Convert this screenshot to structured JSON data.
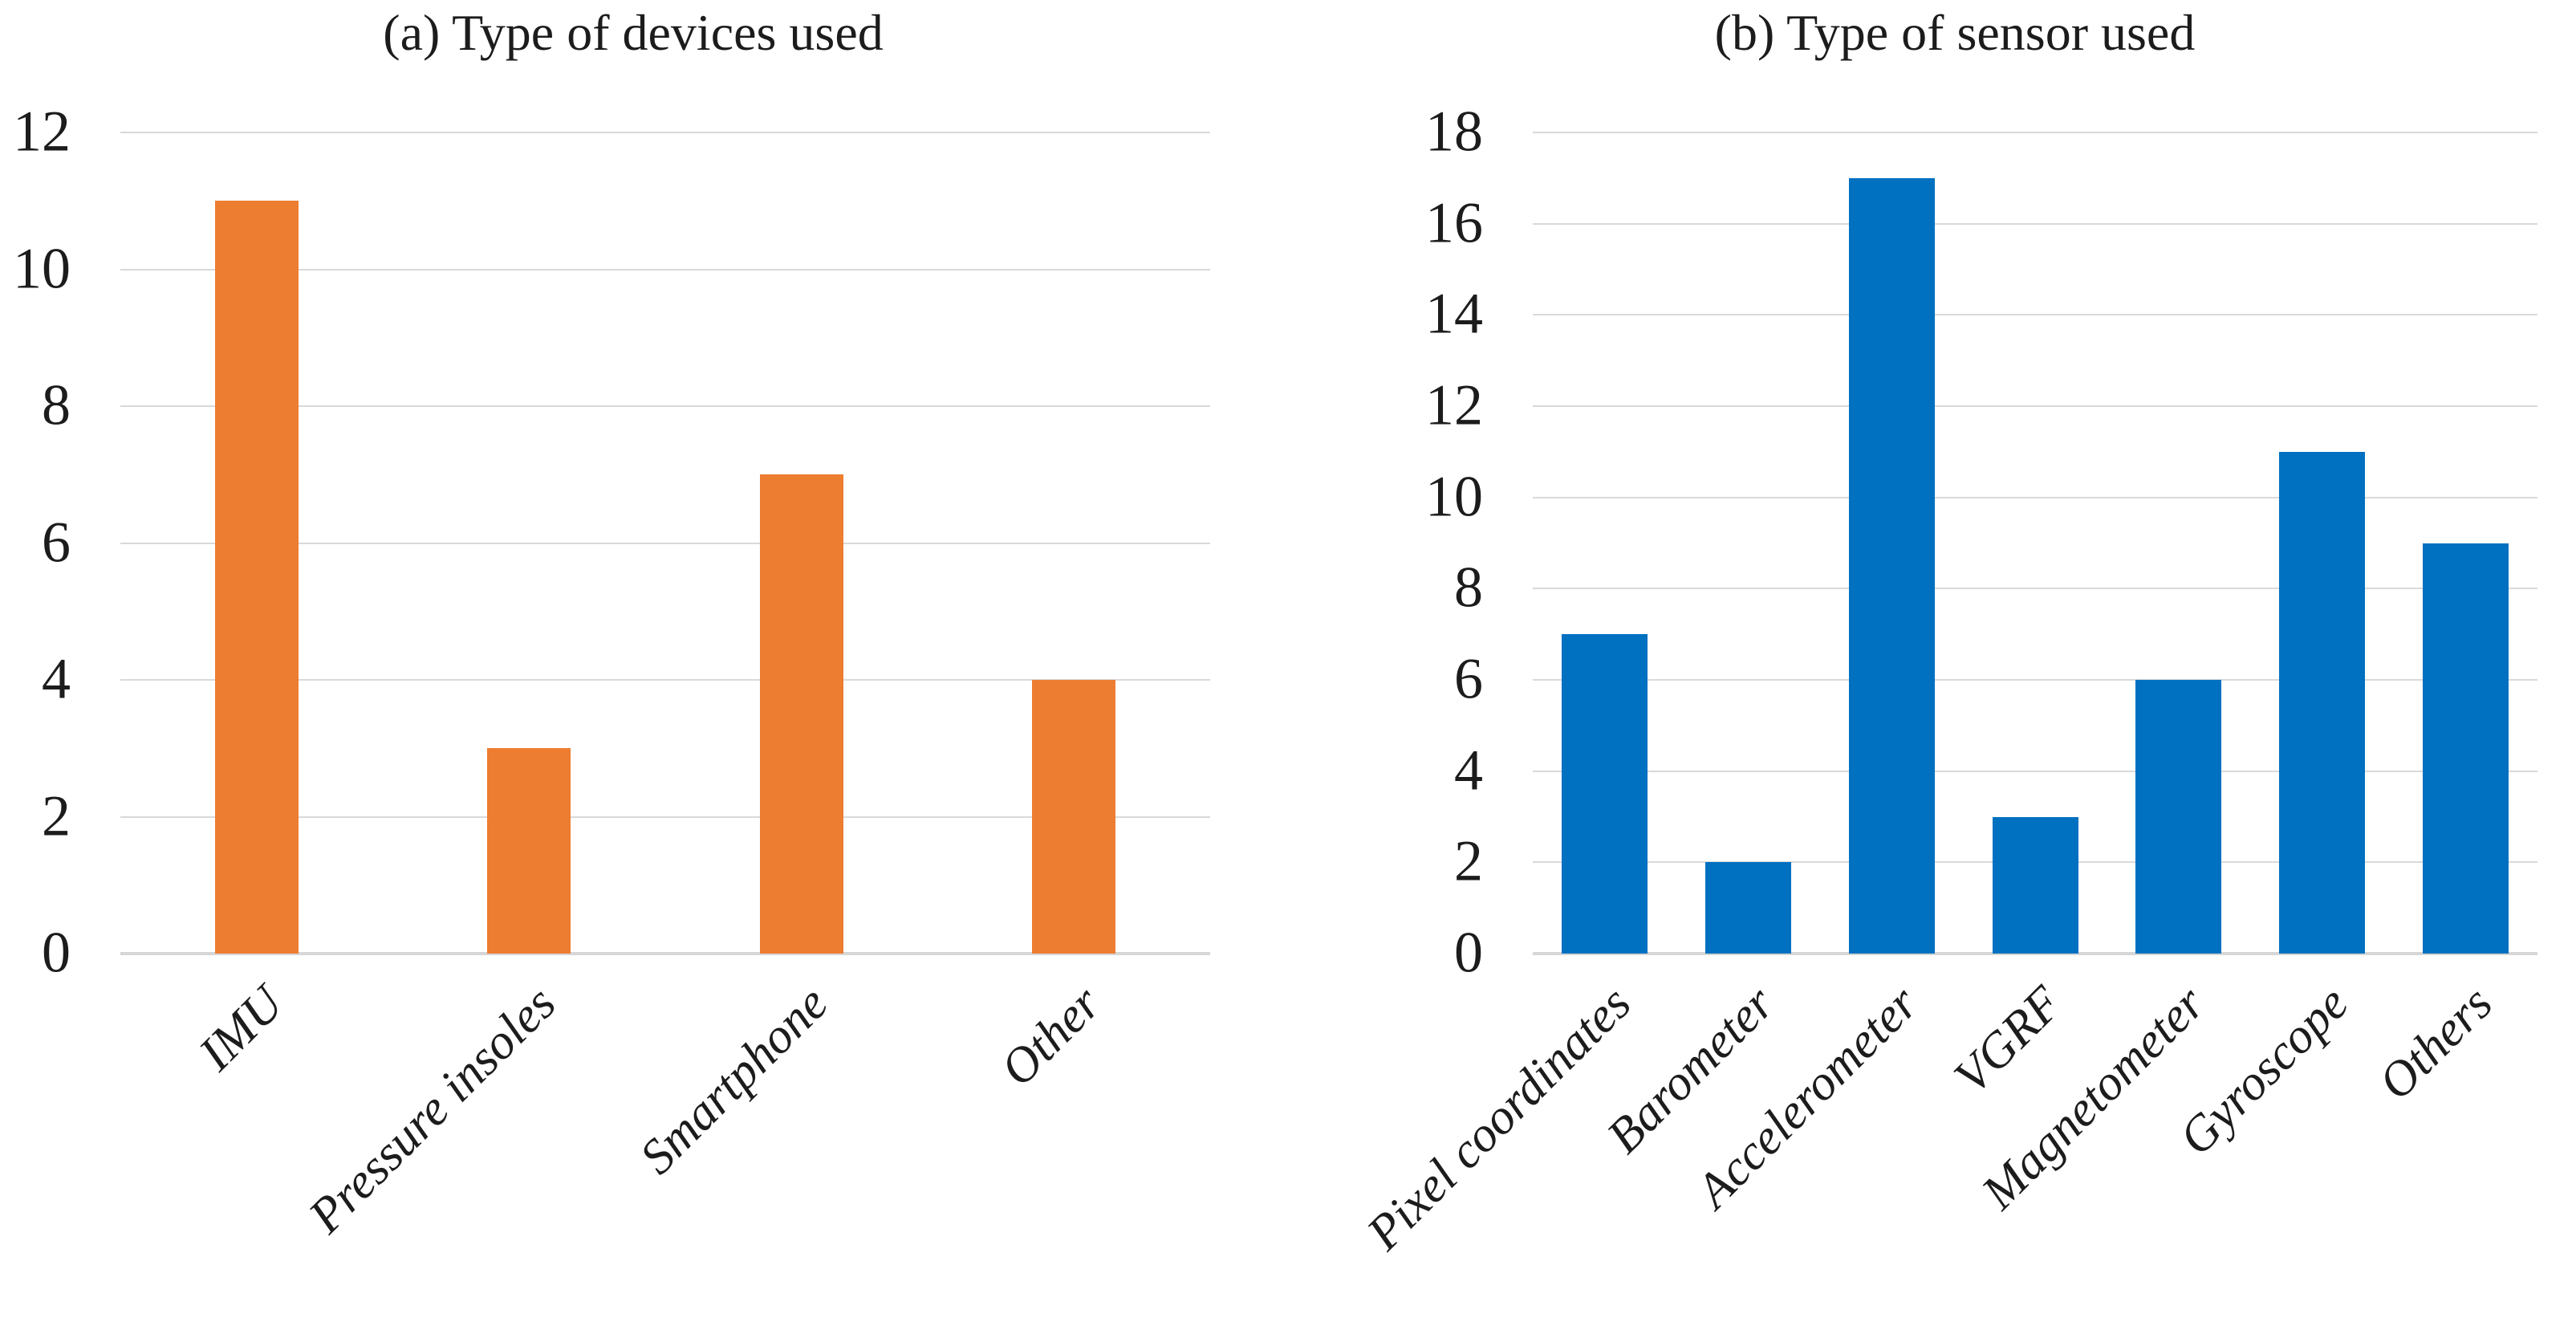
{
  "figure": {
    "background": "#ffffff"
  },
  "colors": {
    "gridline": "#d9d9d9",
    "axis_line": "#d6d6d6",
    "text": "#1c1c1c"
  },
  "chart_data": [
    {
      "type": "bar",
      "title": "(a) Type of devices used",
      "categories": [
        "IMU",
        "Pressure insoles",
        "Smartphone",
        "Other"
      ],
      "values": [
        11,
        3,
        7,
        4
      ],
      "bar_color": "#ED7D31",
      "ylim": [
        0,
        12
      ],
      "ytick_step": 2,
      "yticks": [
        0,
        2,
        4,
        6,
        8,
        10,
        12
      ],
      "grid": "horizontal",
      "legend": "none",
      "xlabel": "",
      "ylabel": ""
    },
    {
      "type": "bar",
      "title": "(b) Type of sensor used",
      "categories": [
        "Pixel coordinates",
        "Barometer",
        "Accelerometer",
        "VGRF",
        "Magnetometer",
        "Gyroscope",
        "Others"
      ],
      "values": [
        7,
        2,
        17,
        3,
        6,
        11,
        9
      ],
      "bar_color": "#0070C0",
      "ylim": [
        0,
        18
      ],
      "ytick_step": 2,
      "yticks": [
        0,
        2,
        4,
        6,
        8,
        10,
        12,
        14,
        16,
        18
      ],
      "grid": "horizontal",
      "legend": "none",
      "xlabel": "",
      "ylabel": ""
    }
  ]
}
